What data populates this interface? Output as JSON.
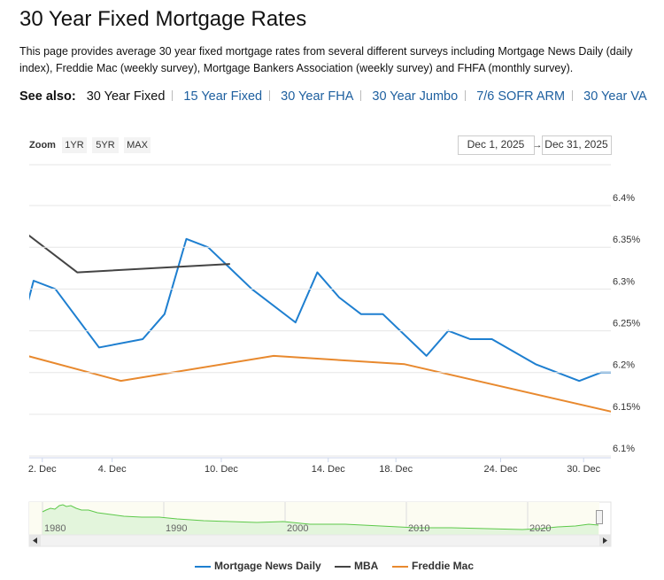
{
  "header": {
    "title": "30 Year Fixed Mortgage Rates",
    "description": "This page provides average 30 year fixed mortgage rates from several different surveys including Mortgage News Daily (daily index), Freddie Mac (weekly survey), Mortgage Bankers Association (weekly survey) and FHFA (monthly survey).",
    "see_also_label": "See also:",
    "links": [
      "30 Year Fixed",
      "15 Year Fixed",
      "30 Year FHA",
      "30 Year Jumbo",
      "7/6 SOFR ARM",
      "30 Year VA"
    ]
  },
  "controls": {
    "zoom_label": "Zoom",
    "zoom_buttons": [
      "1YR",
      "5YR",
      "MAX"
    ],
    "date_from": "Dec 1, 2025",
    "date_separator": "→",
    "date_to": "Dec 31, 2025"
  },
  "navigator": {
    "years": [
      "1980",
      "1990",
      "2000",
      "2010",
      "2020"
    ]
  },
  "chart_data": {
    "type": "line",
    "xlim": [
      -0.2,
      26.45
    ],
    "xticks": [
      {
        "value": 0.4,
        "label": "2. Dec"
      },
      {
        "value": 3.6,
        "label": "4. Dec"
      },
      {
        "value": 8.6,
        "label": "10. Dec"
      },
      {
        "value": 13.5,
        "label": "14. Dec"
      },
      {
        "value": 16.6,
        "label": "18. Dec"
      },
      {
        "value": 21.4,
        "label": "24. Dec"
      },
      {
        "value": 25.2,
        "label": "30. Dec"
      }
    ],
    "ylim": [
      6.1,
      6.45
    ],
    "yticks": [
      {
        "value": 6.1,
        "label": "6.1%"
      },
      {
        "value": 6.15,
        "label": "6.15%"
      },
      {
        "value": 6.2,
        "label": "6.2%"
      },
      {
        "value": 6.25,
        "label": "6.25%"
      },
      {
        "value": 6.3,
        "label": "6.3%"
      },
      {
        "value": 6.35,
        "label": "6.35%"
      },
      {
        "value": 6.4,
        "label": "6.4%"
      }
    ],
    "grid": true,
    "legend": "bottom",
    "series": [
      {
        "name": "Mortgage News Daily",
        "color": "#1e7fd0",
        "x": [
          -1,
          0,
          1,
          3,
          5,
          6,
          7,
          8,
          10,
          12,
          13,
          14,
          15,
          16,
          18,
          19,
          20,
          21,
          23,
          25,
          26,
          27
        ],
        "values": [
          6.21,
          6.31,
          6.3,
          6.23,
          6.24,
          6.27,
          6.36,
          6.35,
          6.3,
          6.26,
          6.32,
          6.29,
          6.27,
          6.27,
          6.22,
          6.25,
          6.24,
          6.24,
          6.21,
          6.19,
          6.2,
          6.2
        ]
      },
      {
        "name": "MBA",
        "color": "#444444",
        "x": [
          -1,
          2,
          9
        ],
        "values": [
          6.38,
          6.32,
          6.33
        ]
      },
      {
        "name": "Freddie Mac",
        "color": "#e8892e",
        "x": [
          -1,
          4,
          11,
          17,
          27
        ],
        "values": [
          6.225,
          6.19,
          6.22,
          6.21,
          6.15
        ]
      }
    ]
  }
}
